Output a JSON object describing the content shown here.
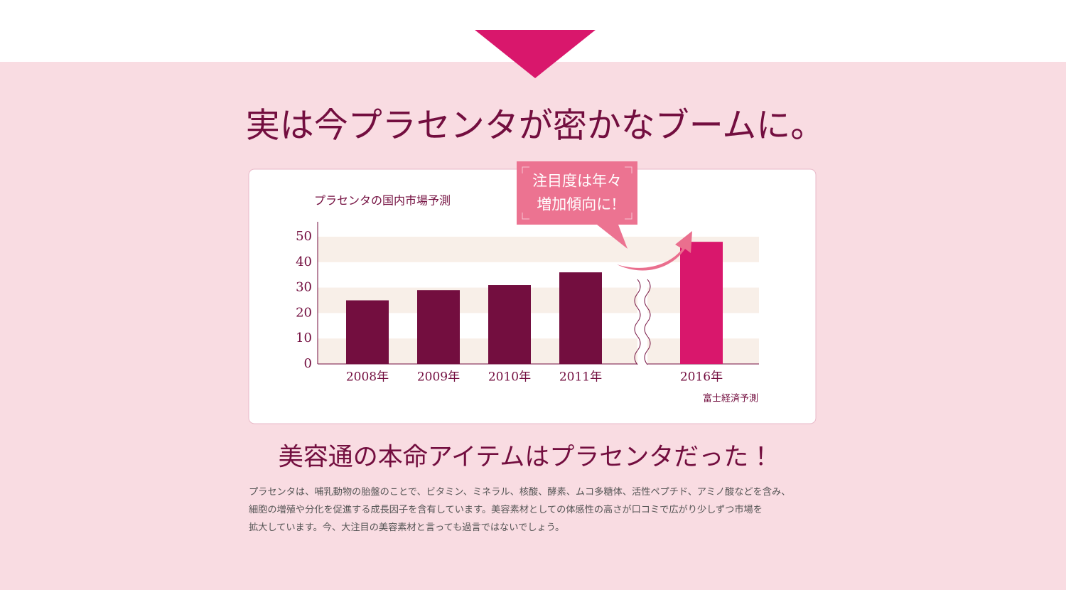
{
  "heading": "実は今プラセンタが密かなブームに。",
  "chart_data": {
    "type": "bar",
    "title": "プラセンタの国内市場予測",
    "categories": [
      "2008年",
      "2009年",
      "2010年",
      "2011年",
      "2016年"
    ],
    "values": [
      25,
      29,
      31,
      36,
      48
    ],
    "colors": [
      "#730e3f",
      "#730e3f",
      "#730e3f",
      "#730e3f",
      "#d9176c"
    ],
    "ylim": [
      0,
      50
    ],
    "yticks": [
      0,
      10,
      20,
      30,
      40,
      50
    ],
    "annotation": [
      "注目度は年々",
      "増加傾向に!"
    ],
    "source": "富士経済予測"
  },
  "subheading": "美容通の本命アイテムはプラセンタだった！",
  "body_lines": [
    "プラセンタは、哺乳動物の胎盤のことで、ビタミン、ミネラル、核酸、酵素、ムコ多糖体、活性ペプチド、アミノ酸などを含み、",
    "細胞の増殖や分化を促進する成長因子を含有しています。美容素材としての体感性の高さが口コミで広がり少しずつ市場を",
    "拡大しています。今、大注目の美容素材と言っても過言ではないでしょう。"
  ]
}
